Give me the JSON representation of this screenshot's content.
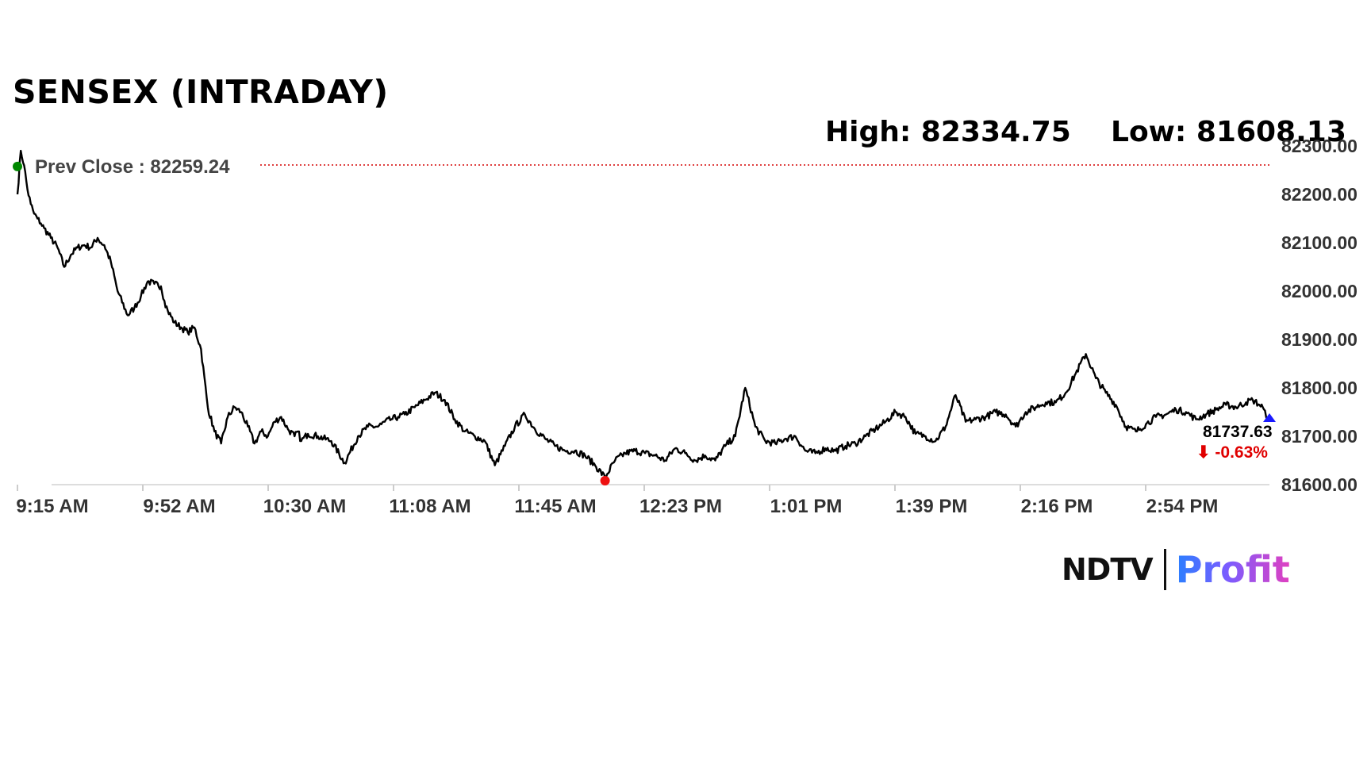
{
  "title": "SENSEX (INTRADAY)",
  "stats": {
    "high": "High: 82334.75",
    "low": "Low: 81608.13"
  },
  "prev_close_label": "Prev Close : 82259.24",
  "last_value": "81737.63",
  "last_change": "⬇ -0.63%",
  "brand": {
    "left": "NDTV",
    "right": "Profit"
  },
  "colors": {
    "line": "#000000",
    "prev_close": "#d40000",
    "open_marker": "#008800",
    "low_marker": "#ee1111",
    "last_marker": "#1a1aff",
    "change": "#e00000"
  },
  "chart_data": {
    "type": "line",
    "title": "SENSEX (INTRADAY)",
    "x_ticks": [
      "9:15 AM",
      "9:52 AM",
      "10:30 AM",
      "11:08 AM",
      "11:45 AM",
      "12:23 PM",
      "1:01 PM",
      "1:39 PM",
      "2:16 PM",
      "2:54 PM"
    ],
    "y_ticks": [
      "81600.00",
      "81700.00",
      "81800.00",
      "81900.00",
      "82000.00",
      "82100.00",
      "82200.00",
      "82300.00"
    ],
    "ylim": [
      81600,
      82300
    ],
    "x_range_minutes": [
      0,
      375
    ],
    "prev_close": 82259.24,
    "high": 82334.75,
    "low": 81608.13,
    "last": 81737.63,
    "change_pct": -0.63,
    "series": [
      {
        "x": [
          0,
          1,
          2,
          3,
          4,
          5,
          6,
          7,
          8,
          10,
          12,
          14,
          16,
          18,
          20,
          22,
          24,
          25,
          26,
          28,
          30,
          33,
          35,
          37,
          39,
          41,
          43,
          44,
          45,
          47,
          49,
          51,
          53,
          55,
          57,
          59,
          61,
          63,
          65,
          67,
          69,
          71,
          73,
          75,
          77,
          79,
          81,
          83,
          84,
          85,
          87,
          90,
          94,
          98,
          102,
          105,
          108,
          109,
          110,
          112,
          114,
          116,
          119,
          122,
          125,
          128,
          131,
          134,
          137,
          140,
          143,
          146,
          149,
          152,
          155,
          158,
          161,
          164,
          167,
          170,
          173,
          176,
          179,
          182,
          185,
          188,
          191,
          194,
          197,
          200,
          203,
          206,
          209,
          212,
          215,
          218,
          221,
          224,
          227,
          230,
          233,
          236,
          239,
          242,
          245,
          248,
          251,
          254,
          257,
          260,
          263,
          266,
          269,
          272,
          275,
          278,
          281,
          284,
          287,
          290,
          293,
          296,
          299,
          302,
          305,
          308,
          311,
          314,
          317,
          320,
          323,
          326,
          329,
          332,
          335,
          338,
          341,
          344,
          347,
          350,
          353,
          356,
          359,
          362,
          365,
          368,
          370,
          372,
          373,
          374,
          375
        ],
        "y": [
          82200,
          82290,
          82260,
          82210,
          82180,
          82160,
          82150,
          82140,
          82130,
          82110,
          82090,
          82050,
          82075,
          82090,
          82095,
          82090,
          82110,
          82100,
          82095,
          82060,
          82000,
          81950,
          81965,
          81990,
          82020,
          82015,
          82010,
          81980,
          81960,
          81935,
          81925,
          81915,
          81925,
          81880,
          81760,
          81710,
          81685,
          81740,
          81760,
          81750,
          81720,
          81685,
          81710,
          81700,
          81730,
          81740,
          81715,
          81700,
          81710,
          81690,
          81705,
          81700,
          81690,
          81645,
          81700,
          81720,
          81720,
          81725,
          81730,
          81735,
          81740,
          81745,
          81760,
          81775,
          81790,
          81775,
          81735,
          81710,
          81700,
          81690,
          81640,
          81680,
          81720,
          81745,
          81715,
          81695,
          81680,
          81670,
          81670,
          81660,
          81640,
          81615,
          81650,
          81665,
          81670,
          81665,
          81660,
          81650,
          81675,
          81665,
          81650,
          81660,
          81650,
          81680,
          81700,
          81800,
          81720,
          81690,
          81685,
          81695,
          81700,
          81670,
          81665,
          81675,
          81670,
          81680,
          81685,
          81700,
          81715,
          81730,
          81750,
          81740,
          81705,
          81700,
          81690,
          81720,
          81785,
          81730,
          81735,
          81740,
          81750,
          81745,
          81720,
          81750,
          81760,
          81770,
          81770,
          81790,
          81830,
          81870,
          81820,
          81790,
          81765,
          81720,
          81710,
          81725,
          81740,
          81745,
          81755,
          81750,
          81735,
          81745,
          81755,
          81765,
          81760,
          81770,
          81775,
          81765,
          81760,
          81740,
          81737.63
        ]
      }
    ]
  }
}
